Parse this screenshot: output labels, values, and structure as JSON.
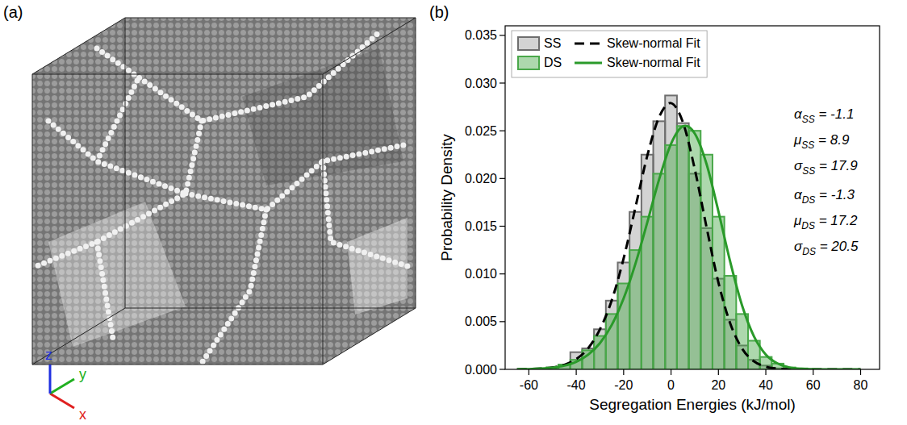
{
  "panel_a": {
    "label": "(a)",
    "axis_labels": [
      "x",
      "y",
      "z"
    ]
  },
  "chart_data": {
    "type": "histogram",
    "panel_label": "(b)",
    "x_label": "Segregation Energies (kJ/mol)",
    "y_label": "Probability Density",
    "xlim": [
      -70,
      88
    ],
    "ylim": [
      0,
      0.036
    ],
    "xticks": [
      -60,
      -40,
      -20,
      0,
      20,
      40,
      60,
      80
    ],
    "yticks": [
      {
        "value": 0,
        "label": "0.000"
      },
      {
        "value": 0.005,
        "label": "0.005"
      },
      {
        "value": 0.01,
        "label": "0.010"
      },
      {
        "value": 0.015,
        "label": "0.015"
      },
      {
        "value": 0.02,
        "label": "0.020"
      },
      {
        "value": 0.025,
        "label": "0.025"
      },
      {
        "value": 0.03,
        "label": "0.030"
      },
      {
        "value": 0.035,
        "label": "0.035"
      }
    ],
    "grid": false,
    "legend": "upper left",
    "bins": [
      -52.5,
      -47.5,
      -42.5,
      -37.5,
      -32.5,
      -27.5,
      -22.5,
      -17.5,
      -12.5,
      -7.5,
      -2.5,
      2.5,
      7.5,
      12.5,
      17.5,
      22.5,
      27.5,
      32.5,
      37.5,
      42.5,
      47.5,
      52.5,
      57.5
    ],
    "series": [
      {
        "name": "SS",
        "type": "histogram",
        "color": "#6e6e6e",
        "values": [
          0.0002,
          0.0005,
          0.0018,
          0.0022,
          0.0042,
          0.0072,
          0.0112,
          0.0165,
          0.0225,
          0.026,
          0.0287,
          0.0258,
          0.0205,
          0.0148,
          0.0095,
          0.0052,
          0.0025,
          0.001,
          0.0004,
          0.0001,
          0,
          0
        ]
      },
      {
        "name": "Skew-normal Fit",
        "type": "line",
        "color": "#000000",
        "line_style": "dashed",
        "x": [
          -65,
          -60,
          -55,
          -50,
          -45,
          -40,
          -35,
          -30,
          -25,
          -20,
          -15,
          -10,
          -5,
          0,
          5,
          10,
          15,
          20,
          25,
          30,
          35,
          40,
          45,
          50,
          55,
          60,
          65,
          70,
          75,
          80
        ],
        "values": [
          0,
          3e-05,
          8e-05,
          0.0002,
          0.00048,
          0.00107,
          0.0022,
          0.0042,
          0.00725,
          0.01162,
          0.01699,
          0.0224,
          0.02645,
          0.0279,
          0.0259,
          0.021,
          0.01488,
          0.0091,
          0.0048,
          0.00217,
          0.00084,
          0.00028,
          8e-05,
          2e-05,
          0,
          0,
          0,
          0,
          0,
          0
        ]
      },
      {
        "name": "DS",
        "type": "histogram",
        "color": "#4aa84a",
        "values": [
          0.0002,
          0.0005,
          0.001,
          0.002,
          0.0035,
          0.0058,
          0.009,
          0.0125,
          0.016,
          0.0205,
          0.0235,
          0.0255,
          0.025,
          0.0225,
          0.016,
          0.0098,
          0.0058,
          0.003,
          0.0013,
          0.0006,
          0.0002,
          0.0001
        ]
      },
      {
        "name": "Skew-normal Fit",
        "type": "line",
        "color": "#2a9a2a",
        "line_style": "solid",
        "x": [
          -65,
          -60,
          -55,
          -50,
          -45,
          -40,
          -35,
          -30,
          -25,
          -20,
          -15,
          -10,
          -5,
          0,
          5,
          10,
          15,
          20,
          25,
          30,
          35,
          40,
          45,
          50,
          55,
          60,
          65,
          70,
          75,
          80
        ],
        "values": [
          1e-05,
          3e-05,
          8e-05,
          0.00018,
          0.00039,
          0.00079,
          0.00153,
          0.00275,
          0.00466,
          0.00743,
          0.01108,
          0.01541,
          0.01993,
          0.02363,
          0.02546,
          0.02472,
          0.02151,
          0.01656,
          0.01125,
          0.00668,
          0.00346,
          0.00155,
          0.00061,
          0.0002,
          6e-05,
          2e-05,
          0,
          0,
          0,
          0
        ]
      }
    ],
    "annotations": [
      {
        "symbol": "α",
        "subscript": "SS",
        "text": " = -1.1"
      },
      {
        "symbol": "μ",
        "subscript": "SS",
        "text": " = 8.9"
      },
      {
        "symbol": "σ",
        "subscript": "SS",
        "text": " = 17.9"
      },
      {
        "symbol": "α",
        "subscript": "DS",
        "text": " = -1.3"
      },
      {
        "symbol": "μ",
        "subscript": "DS",
        "text": " = 17.2"
      },
      {
        "symbol": "σ",
        "subscript": "DS",
        "text": " = 20.5"
      }
    ]
  }
}
